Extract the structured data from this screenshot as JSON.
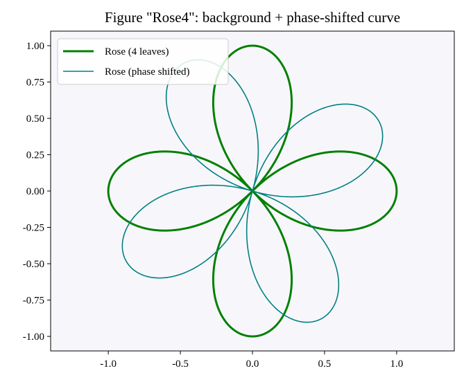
{
  "chart_data": {
    "type": "line",
    "title": "Figure \"Rose4\": background + phase-shifted curve",
    "xlabel": "",
    "ylabel": "",
    "xlim": [
      -1.4,
      1.4
    ],
    "ylim": [
      -1.1,
      1.1
    ],
    "xticks": [
      -1.0,
      -0.5,
      0.0,
      0.5,
      1.0
    ],
    "xtick_labels": [
      "-1.0",
      "-0.5",
      "0.0",
      "0.5",
      "1.0"
    ],
    "yticks": [
      1.0,
      0.75,
      0.5,
      0.25,
      0.0,
      -0.25,
      -0.5,
      -0.75,
      -1.0
    ],
    "ytick_labels": [
      "1.00",
      "0.75",
      "0.50",
      "0.25",
      "0.00",
      "-0.25",
      "-0.50",
      "-0.75",
      "-1.00"
    ],
    "grid": false,
    "background_color": "#f7f7fb",
    "legend_position": "top-left",
    "series": [
      {
        "name": "Rose (4 leaves)",
        "color": "#008000",
        "equation": "r = cos(2θ)",
        "phase_rad": 0.0,
        "line": "thick"
      },
      {
        "name": "Rose (phase shifted)",
        "color": "#008080",
        "equation": "r = cos(2(θ − φ))",
        "phase_rad": 0.5,
        "line": "thin"
      }
    ]
  }
}
